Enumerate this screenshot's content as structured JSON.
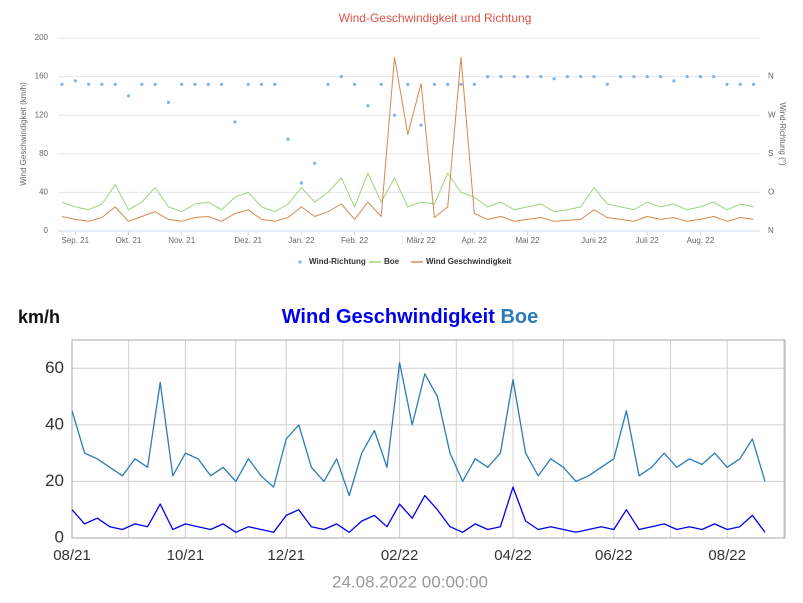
{
  "chart_data": [
    {
      "type": "line",
      "title": "Wind-Geschwindigkeit und Richtung",
      "ylabel": "Wind Geschwindigkeit (km/h)",
      "y2label": "Wind-Richtung (°)",
      "categories": [
        null,
        "Sep. 21",
        null,
        null,
        null,
        "Okt. 21",
        null,
        null,
        null,
        "Nov. 21",
        null,
        null,
        null,
        null,
        "Dez. 21",
        null,
        null,
        null,
        "Jan. 22",
        null,
        null,
        null,
        "Feb. 22",
        null,
        null,
        null,
        null,
        "März 22",
        null,
        null,
        null,
        "Apr. 22",
        null,
        null,
        null,
        "Mai 22",
        null,
        null,
        null,
        null,
        "Juni 22",
        null,
        null,
        null,
        "Juli 22",
        null,
        null,
        null,
        "Aug. 22",
        null,
        null,
        null,
        null
      ],
      "ylim": [
        0,
        200
      ],
      "yticks": [
        0,
        40,
        80,
        120,
        160,
        200
      ],
      "y2lim": [
        0,
        450
      ],
      "y2ticks": [
        {
          "value": 0,
          "label": "N"
        },
        {
          "value": 90,
          "label": "O"
        },
        {
          "value": 180,
          "label": "S"
        },
        {
          "value": 270,
          "label": "W"
        },
        {
          "value": 360,
          "label": "N"
        }
      ],
      "grid": true,
      "series": [
        {
          "name": "Wind-Richtung",
          "color": "#7cb5ec",
          "mode": "markers",
          "axis": "y2",
          "values": [
            342,
            350,
            342,
            342,
            342,
            315,
            342,
            342,
            300,
            342,
            342,
            342,
            342,
            254,
            342,
            342,
            342,
            214,
            112,
            158,
            342,
            360,
            342,
            292,
            342,
            270,
            342,
            247,
            342,
            342,
            342,
            342,
            360,
            360,
            360,
            360,
            360,
            355,
            360,
            360,
            360,
            342,
            360,
            360,
            360,
            360,
            350,
            360,
            360,
            360,
            342,
            342,
            342
          ]
        },
        {
          "name": "Boe",
          "color": "#9ed37f",
          "mode": "line",
          "values": [
            30,
            25,
            22,
            28,
            48,
            22,
            30,
            45,
            25,
            20,
            28,
            30,
            22,
            35,
            40,
            25,
            20,
            28,
            45,
            30,
            40,
            55,
            25,
            60,
            30,
            55,
            25,
            30,
            28,
            60,
            40,
            35,
            25,
            30,
            22,
            25,
            28,
            20,
            22,
            25,
            45,
            28,
            25,
            22,
            30,
            25,
            28,
            22,
            25,
            30,
            22,
            28,
            25
          ]
        },
        {
          "name": "Wind Geschwindigkeit",
          "color": "#d4894f",
          "mode": "line",
          "values": [
            15,
            12,
            10,
            14,
            25,
            10,
            15,
            20,
            12,
            10,
            14,
            15,
            10,
            18,
            22,
            12,
            10,
            14,
            25,
            15,
            20,
            28,
            12,
            30,
            15,
            180,
            100,
            153,
            14,
            25,
            180,
            18,
            12,
            15,
            10,
            12,
            14,
            10,
            11,
            12,
            22,
            14,
            12,
            10,
            15,
            12,
            14,
            10,
            12,
            15,
            10,
            14,
            12
          ]
        }
      ]
    },
    {
      "type": "line",
      "ylabel": "km/h",
      "footer": "24.08.2022 00:00:00",
      "categories": [
        "08/21",
        null,
        null,
        null,
        null,
        null,
        null,
        null,
        null,
        "10/21",
        null,
        null,
        null,
        null,
        null,
        null,
        null,
        "12/21",
        null,
        null,
        null,
        null,
        null,
        null,
        null,
        null,
        "02/22",
        null,
        null,
        null,
        null,
        null,
        null,
        null,
        null,
        "04/22",
        null,
        null,
        null,
        null,
        null,
        null,
        null,
        "06/22",
        null,
        null,
        null,
        null,
        null,
        null,
        null,
        null,
        "08/22",
        null,
        null,
        null
      ],
      "ylim": [
        0,
        70
      ],
      "yticks": [
        0,
        20,
        40,
        60
      ],
      "grid": true,
      "series": [
        {
          "name": "Wind Geschwindigkeit",
          "color": "#0000ee",
          "mode": "line",
          "values": [
            10,
            5,
            7,
            4,
            3,
            5,
            4,
            12,
            3,
            5,
            4,
            3,
            5,
            2,
            4,
            3,
            2,
            8,
            10,
            4,
            3,
            5,
            2,
            6,
            8,
            4,
            12,
            7,
            15,
            10,
            4,
            2,
            5,
            3,
            4,
            18,
            6,
            3,
            4,
            3,
            2,
            3,
            4,
            3,
            10,
            3,
            4,
            5,
            3,
            4,
            3,
            5,
            3,
            4,
            8,
            2
          ]
        },
        {
          "name": "Boe",
          "color": "#2b7bba",
          "mode": "line",
          "values": [
            45,
            30,
            28,
            25,
            22,
            28,
            25,
            55,
            22,
            30,
            28,
            22,
            25,
            20,
            28,
            22,
            18,
            35,
            40,
            25,
            20,
            28,
            15,
            30,
            38,
            25,
            62,
            40,
            58,
            50,
            30,
            20,
            28,
            25,
            30,
            56,
            30,
            22,
            28,
            25,
            20,
            22,
            25,
            28,
            45,
            22,
            25,
            30,
            25,
            28,
            26,
            30,
            25,
            28,
            35,
            20
          ]
        }
      ]
    }
  ]
}
